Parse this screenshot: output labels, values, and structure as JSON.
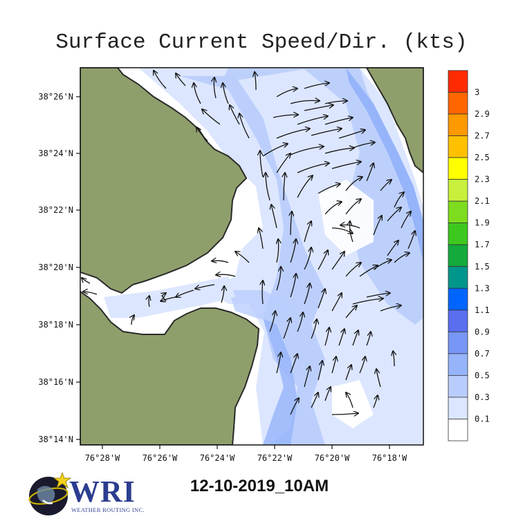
{
  "title": "Surface Current Speed/Dir. (kts)",
  "timestamp": "12-10-2019_10AM",
  "logo": {
    "name": "WRI",
    "subtitle": "WEATHER ROUTING INC."
  },
  "map": {
    "lat_ticks": [
      "38°26'N",
      "38°24'N",
      "38°22'N",
      "38°20'N",
      "38°18'N",
      "38°16'N",
      "38°14'N"
    ],
    "lon_ticks": [
      "76°28'W",
      "76°26'W",
      "76°24'W",
      "76°22'W",
      "76°20'W",
      "76°18'W"
    ],
    "colors": {
      "land": "#8f9f6c",
      "water": "#ffffff",
      "coast": "#2a2a2a",
      "arrow": "#111111"
    }
  },
  "colorbar": {
    "labels": [
      "3",
      "2.9",
      "2.7",
      "2.5",
      "2.3",
      "2.1",
      "1.9",
      "1.7",
      "1.5",
      "1.3",
      "1.1",
      "0.9",
      "0.7",
      "0.5",
      "0.3",
      "0.1"
    ],
    "colors": [
      "#ff2a00",
      "#ff6600",
      "#ff9900",
      "#ffc000",
      "#ffff00",
      "#c8f03c",
      "#7ddc1e",
      "#3cc81e",
      "#14aa3c",
      "#00968c",
      "#0064ff",
      "#5a6ef0",
      "#7896f5",
      "#96b4fa",
      "#b9cdfc",
      "#dce6ff",
      "#ffffff"
    ]
  }
}
